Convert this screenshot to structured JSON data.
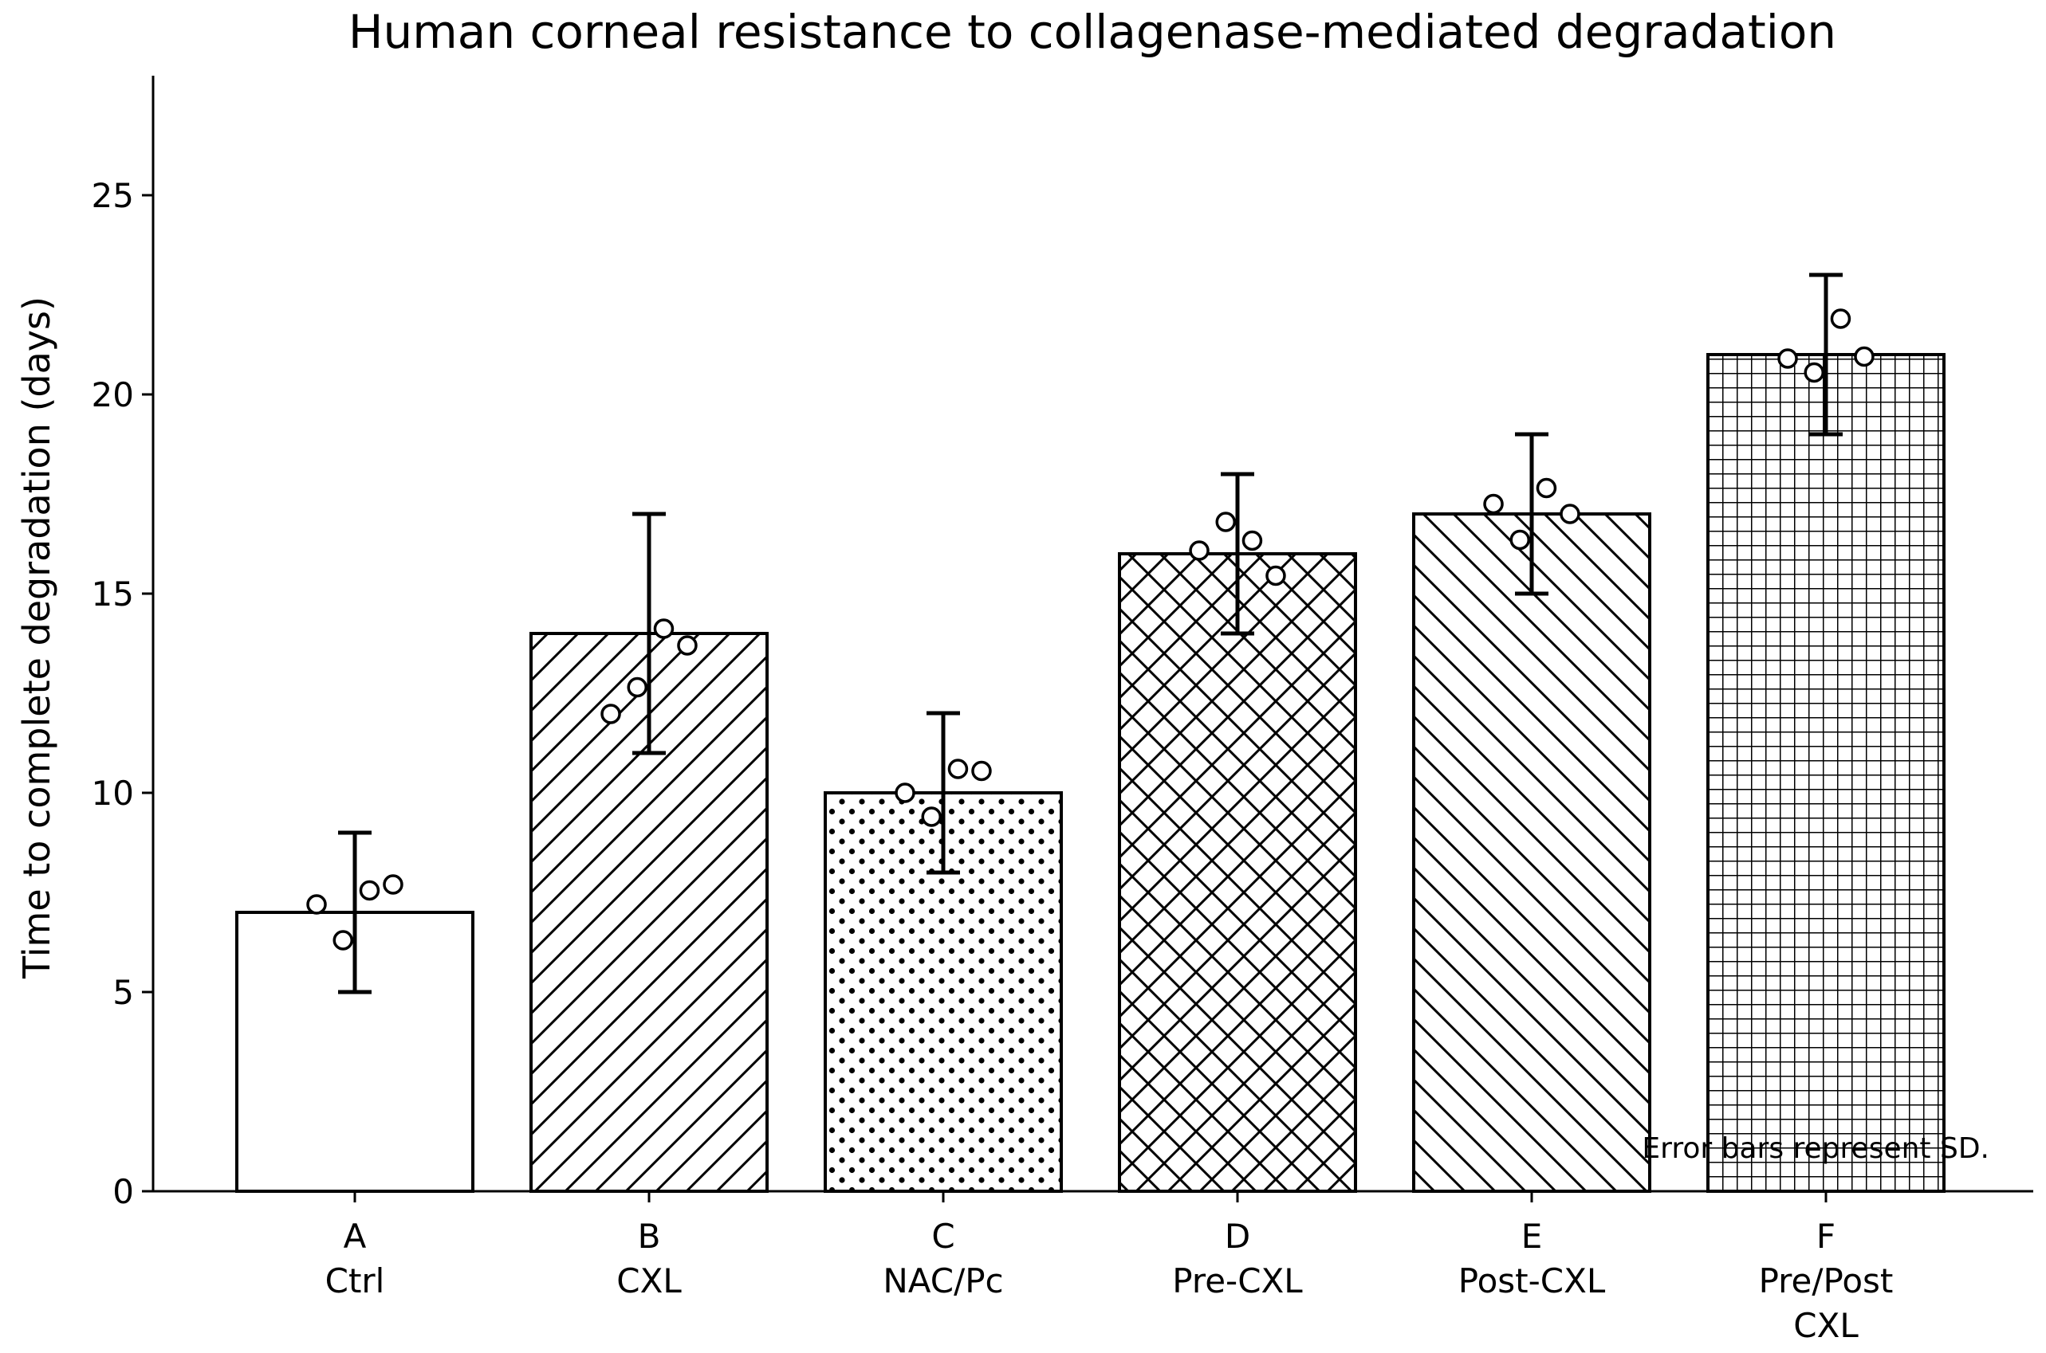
{
  "chart_data": {
    "type": "bar",
    "title": "Human corneal resistance to collagenase-mediated degradation",
    "xlabel": "",
    "ylabel": "Time to complete degradation (days)",
    "ylim": [
      0,
      28
    ],
    "yticks": [
      0,
      5,
      10,
      15,
      20,
      25
    ],
    "grid": false,
    "annotation": "Error bars represent SD.",
    "categories": [
      {
        "letter": "A",
        "name": [
          "Ctrl"
        ]
      },
      {
        "letter": "B",
        "name": [
          "CXL"
        ]
      },
      {
        "letter": "C",
        "name": [
          "NAC/Pc"
        ]
      },
      {
        "letter": "D",
        "name": [
          "Pre-CXL"
        ]
      },
      {
        "letter": "E",
        "name": [
          "Post-CXL"
        ]
      },
      {
        "letter": "F",
        "name": [
          "Pre/Post",
          "CXL"
        ]
      }
    ],
    "values": [
      7,
      14,
      10,
      16,
      17,
      21
    ],
    "sd": [
      2,
      3,
      2,
      2,
      2,
      2
    ],
    "hatch": [
      "none",
      "forward-diagonal",
      "dots",
      "crosshatch-diagonal",
      "back-diagonal",
      "grid"
    ],
    "points": [
      [
        [
          -0.13,
          7.2
        ],
        [
          -0.04,
          6.3
        ],
        [
          0.05,
          7.55
        ],
        [
          0.13,
          7.7
        ]
      ],
      [
        [
          -0.13,
          11.98
        ],
        [
          -0.04,
          12.65
        ],
        [
          0.05,
          14.12
        ],
        [
          0.13,
          13.7
        ]
      ],
      [
        [
          -0.13,
          10.0
        ],
        [
          -0.04,
          9.4
        ],
        [
          0.05,
          10.6
        ],
        [
          0.13,
          10.55
        ]
      ],
      [
        [
          -0.13,
          16.08
        ],
        [
          -0.04,
          16.8
        ],
        [
          0.05,
          16.33
        ],
        [
          0.13,
          15.45
        ]
      ],
      [
        [
          -0.13,
          17.25
        ],
        [
          -0.04,
          16.35
        ],
        [
          0.05,
          17.65
        ],
        [
          0.13,
          17.0
        ]
      ],
      [
        [
          -0.13,
          20.9
        ],
        [
          -0.04,
          20.55
        ],
        [
          0.05,
          21.9
        ],
        [
          0.13,
          20.95
        ]
      ]
    ]
  }
}
